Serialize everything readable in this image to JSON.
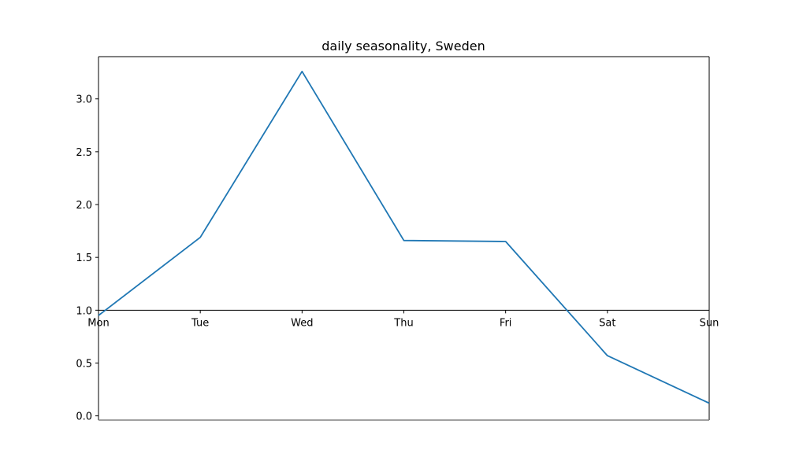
{
  "chart_data": {
    "type": "line",
    "title": "daily seasonality, Sweden",
    "xlabel": "",
    "ylabel": "",
    "categories": [
      "Mon",
      "Tue",
      "Wed",
      "Thu",
      "Fri",
      "Sat",
      "Sun"
    ],
    "series": [
      {
        "values": [
          0.95,
          1.69,
          3.26,
          1.66,
          1.65,
          0.57,
          0.12
        ],
        "color": "#1f77b4"
      }
    ],
    "ylim": [
      -0.04,
      3.4
    ],
    "yticks": [
      "0.0",
      "0.5",
      "1.0",
      "1.5",
      "2.0",
      "2.5",
      "3.0"
    ],
    "x_axis_at_y": 1.0,
    "grid": false
  }
}
